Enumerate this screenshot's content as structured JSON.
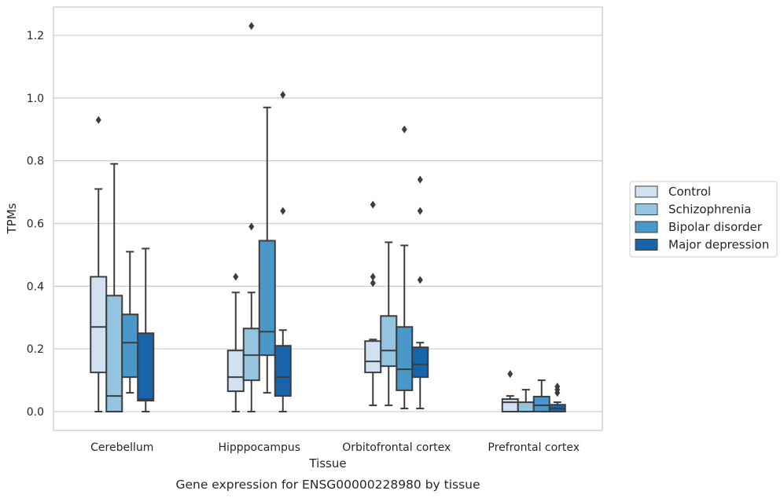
{
  "chart_data": {
    "type": "box",
    "caption": "Gene expression for ENSG00000228980 by tissue",
    "xlabel": "Tissue",
    "ylabel": "TPMs",
    "ylim": [
      -0.06,
      1.29
    ],
    "yticks": [
      0.0,
      0.2,
      0.4,
      0.6,
      0.8,
      1.0,
      1.2
    ],
    "ytick_labels": [
      "0.0",
      "0.2",
      "0.4",
      "0.6",
      "0.8",
      "1.0",
      "1.2"
    ],
    "grid": "horizontal",
    "legend_position": "right",
    "categories": [
      "Cerebellum",
      "Hipppocampus",
      "Orbitofrontal cortex",
      "Prefrontal cortex"
    ],
    "series": [
      {
        "name": "Control",
        "color": "#d0e1f2",
        "boxes": [
          {
            "whislo": 0.0,
            "q1": 0.125,
            "med": 0.27,
            "q3": 0.43,
            "whishi": 0.71,
            "fliers": [
              0.93
            ]
          },
          {
            "whislo": 0.0,
            "q1": 0.065,
            "med": 0.11,
            "q3": 0.195,
            "whishi": 0.38,
            "fliers": [
              0.43
            ]
          },
          {
            "whislo": 0.02,
            "q1": 0.125,
            "med": 0.16,
            "q3": 0.225,
            "whishi": 0.23,
            "fliers": [
              0.41,
              0.43,
              0.66
            ]
          },
          {
            "whislo": 0.0,
            "q1": 0.0,
            "med": 0.03,
            "q3": 0.04,
            "whishi": 0.05,
            "fliers": [
              0.12
            ]
          }
        ]
      },
      {
        "name": "Schizophrenia",
        "color": "#94c4df",
        "boxes": [
          {
            "whislo": 0.0,
            "q1": 0.0,
            "med": 0.05,
            "q3": 0.37,
            "whishi": 0.79,
            "fliers": []
          },
          {
            "whislo": 0.0,
            "q1": 0.1,
            "med": 0.18,
            "q3": 0.265,
            "whishi": 0.38,
            "fliers": [
              0.59,
              1.23
            ]
          },
          {
            "whislo": 0.02,
            "q1": 0.145,
            "med": 0.195,
            "q3": 0.305,
            "whishi": 0.54,
            "fliers": []
          },
          {
            "whislo": 0.0,
            "q1": 0.0,
            "med": 0.0,
            "q3": 0.03,
            "whishi": 0.07,
            "fliers": []
          }
        ]
      },
      {
        "name": "Bipolar disorder",
        "color": "#4a98c9",
        "boxes": [
          {
            "whislo": 0.06,
            "q1": 0.11,
            "med": 0.22,
            "q3": 0.31,
            "whishi": 0.51,
            "fliers": []
          },
          {
            "whislo": 0.06,
            "q1": 0.18,
            "med": 0.255,
            "q3": 0.545,
            "whishi": 0.97,
            "fliers": []
          },
          {
            "whislo": 0.01,
            "q1": 0.068,
            "med": 0.135,
            "q3": 0.27,
            "whishi": 0.53,
            "fliers": [
              0.9
            ]
          },
          {
            "whislo": 0.0,
            "q1": 0.0,
            "med": 0.02,
            "q3": 0.048,
            "whishi": 0.1,
            "fliers": []
          }
        ]
      },
      {
        "name": "Major depression",
        "color": "#1764ab",
        "boxes": [
          {
            "whislo": 0.0,
            "q1": 0.035,
            "med": 0.04,
            "q3": 0.25,
            "whishi": 0.52,
            "fliers": []
          },
          {
            "whislo": 0.0,
            "q1": 0.05,
            "med": 0.11,
            "q3": 0.21,
            "whishi": 0.26,
            "fliers": [
              0.64,
              1.01
            ]
          },
          {
            "whislo": 0.01,
            "q1": 0.11,
            "med": 0.15,
            "q3": 0.205,
            "whishi": 0.22,
            "fliers": [
              0.42,
              0.64,
              0.74
            ]
          },
          {
            "whislo": 0.0,
            "q1": 0.0,
            "med": 0.01,
            "q3": 0.022,
            "whishi": 0.03,
            "fliers": [
              0.06,
              0.07,
              0.08
            ]
          }
        ]
      }
    ]
  }
}
